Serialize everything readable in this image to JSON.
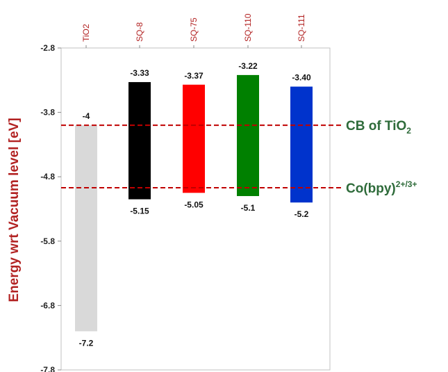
{
  "chart_data": {
    "type": "floating-bar",
    "ylabel": "Energy wrt Vacuum level [eV]",
    "ylim": [
      -7.8,
      -2.8
    ],
    "yticks": [
      -2.8,
      -3.8,
      -4.8,
      -5.8,
      -6.8,
      -7.8
    ],
    "ytick_labels": [
      "-2.8",
      "-3.8",
      "-4.8",
      "-5.8",
      "-6.8",
      "-7.8"
    ],
    "categories": [
      "TiO2",
      "SQ-8",
      "SQ-75",
      "SQ-110",
      "SQ-111"
    ],
    "bars": [
      {
        "category": "TiO2",
        "top": -4.0,
        "bottom": -7.2,
        "top_label": "-4",
        "bottom_label": "-7.2",
        "color": "#d9d9d9"
      },
      {
        "category": "SQ-8",
        "top": -3.33,
        "bottom": -5.15,
        "top_label": "-3.33",
        "bottom_label": "-5.15",
        "color": "#000000"
      },
      {
        "category": "SQ-75",
        "top": -3.37,
        "bottom": -5.05,
        "top_label": "-3.37",
        "bottom_label": "-5.05",
        "color": "#ff0000"
      },
      {
        "category": "SQ-110",
        "top": -3.22,
        "bottom": -5.1,
        "top_label": "-3.22",
        "bottom_label": "-5.1",
        "color": "#008000"
      },
      {
        "category": "SQ-111",
        "top": -3.4,
        "bottom": -5.2,
        "top_label": "-3.40",
        "bottom_label": "-5.2",
        "color": "#0033cc"
      }
    ],
    "reference_lines": [
      {
        "y": -4.0,
        "label": "CB of TiO",
        "label_sub": "2",
        "label_sup": ""
      },
      {
        "y": -4.97,
        "label": "Co(bpy)",
        "label_sub": "",
        "label_sup": "2+/3+"
      }
    ],
    "reference_line_color": "#c00000",
    "annotation_color": "#2e6b3a",
    "axis_label_color": "#b22222",
    "grid": false,
    "legend": "none"
  }
}
